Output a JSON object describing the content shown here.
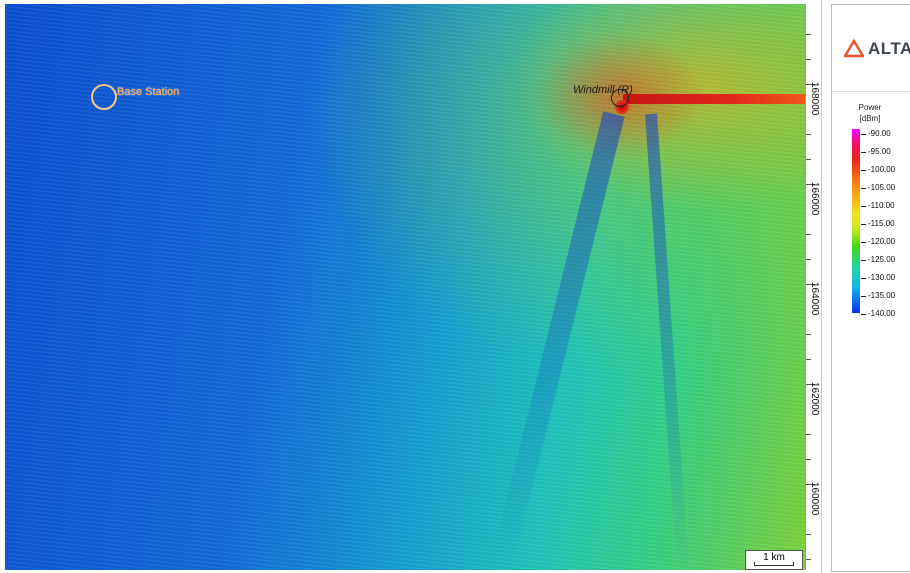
{
  "map": {
    "markers": [
      {
        "label": "Base Station",
        "color": "#ffa34a"
      },
      {
        "label": "Windmill (R)",
        "color": "#1a1a1a"
      }
    ],
    "scale_bar": "1 km",
    "ruler_labels": [
      "168000",
      "166000",
      "164000",
      "162000",
      "160000"
    ]
  },
  "legend": {
    "brand": "ALTAIR",
    "brand_color": "#e8512b",
    "title": "Power",
    "unit": "[dBm]",
    "values": [
      "-90.00",
      "-95.00",
      "-100.00",
      "-105.00",
      "-110.00",
      "-115.00",
      "-120.00",
      "-125.00",
      "-130.00",
      "-135.00",
      "-140.00"
    ]
  }
}
